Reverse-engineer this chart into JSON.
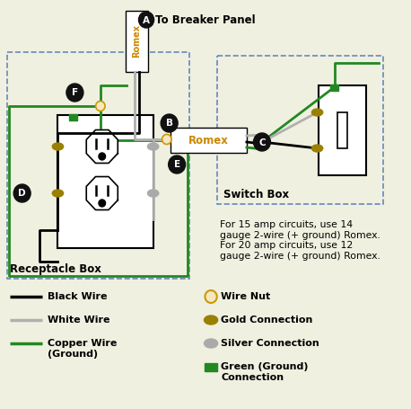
{
  "bg_color": "#f0f0e0",
  "romex_color": "#cc8800",
  "black_wire": "#000000",
  "white_wire": "#b0b0b0",
  "green_wire": "#228822",
  "wire_nut_color": "#f5e8c0",
  "gold_color": "#9a8000",
  "silver_color": "#aaaaaa",
  "receptacle_box_label": "Receptacle Box",
  "switch_box_label": "Switch Box",
  "title_label": "To Breaker Panel",
  "note_text": "For 15 amp circuits, use 14\ngauge 2-wire (+ ground) Romex.\nFor 20 amp circuits, use 12\ngauge 2-wire (+ ground) Romex."
}
